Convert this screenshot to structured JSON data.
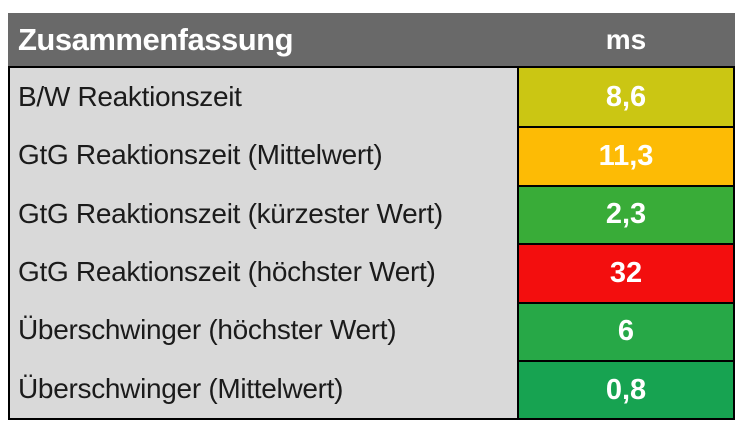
{
  "chart_data": {
    "type": "table",
    "title": "Zusammenfassung",
    "unit_label": "ms",
    "rows": [
      {
        "label": "B/W Reaktionszeit",
        "display_value": "8,6",
        "value": 8.6,
        "color": "#cbc613"
      },
      {
        "label": "GtG Reaktionszeit (Mittelwert)",
        "display_value": "11,3",
        "value": 11.3,
        "color": "#fdbb05"
      },
      {
        "label": "GtG Reaktionszeit (kürzester Wert)",
        "display_value": "2,3",
        "value": 2.3,
        "color": "#39ac38"
      },
      {
        "label": "GtG Reaktionszeit (höchster Wert)",
        "display_value": "32",
        "value": 32,
        "color": "#f30e0e"
      },
      {
        "label": "Überschwinger (höchster Wert)",
        "display_value": "6",
        "value": 6,
        "color": "#27a847"
      },
      {
        "label": "Überschwinger (Mittelwert)",
        "display_value": "0,8",
        "value": 0.8,
        "color": "#17a351"
      }
    ]
  },
  "colors": {
    "page_bg": "#ffffff",
    "header_bg": "#696969",
    "header_text": "#ffffff",
    "label_bg": "#d9d9d9",
    "label_text": "#1b1b1b",
    "value_text": "#ffffff",
    "border": "#000000"
  }
}
